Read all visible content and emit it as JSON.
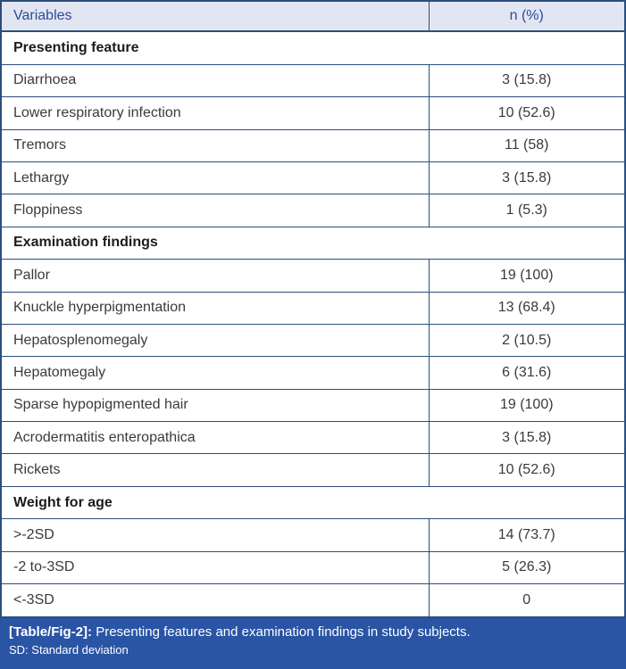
{
  "table": {
    "header": {
      "variables": "Variables",
      "n_pct": "n (%)"
    },
    "sections": [
      {
        "title": "Presenting feature",
        "rows": [
          {
            "label": "Diarrhoea",
            "value": "3 (15.8)"
          },
          {
            "label": "Lower respiratory infection",
            "value": "10 (52.6)"
          },
          {
            "label": "Tremors",
            "value": "11 (58)"
          },
          {
            "label": "Lethargy",
            "value": "3 (15.8)"
          },
          {
            "label": "Floppiness",
            "value": "1 (5.3)"
          }
        ]
      },
      {
        "title": "Examination findings",
        "rows": [
          {
            "label": "Pallor",
            "value": "19 (100)"
          },
          {
            "label": "Knuckle hyperpigmentation",
            "value": "13 (68.4)"
          },
          {
            "label": "Hepatosplenomegaly",
            "value": "2 (10.5)"
          },
          {
            "label": "Hepatomegaly",
            "value": "6 (31.6)"
          },
          {
            "label": "Sparse hypopigmented hair",
            "value": "19 (100)"
          },
          {
            "label": "Acrodermatitis enteropathica",
            "value": "3 (15.8)"
          },
          {
            "label": "Rickets",
            "value": "10 (52.6)"
          }
        ]
      },
      {
        "title": "Weight for age",
        "rows": [
          {
            "label": ">-2SD",
            "value": "14 (73.7)"
          },
          {
            "label": "-2 to-3SD",
            "value": "5 (26.3)"
          },
          {
            "label": "<-3SD",
            "value": "0"
          }
        ]
      }
    ],
    "caption": {
      "tag": "[Table/Fig-2]:",
      "text": "Presenting features and examination findings in study subjects.",
      "note": "SD: Standard deviation"
    }
  },
  "colors": {
    "header_bg": "#e2e6f2",
    "header_text": "#2b4b9c",
    "border": "#2c4e7c",
    "footer_bg": "#2a54a4",
    "footer_text": "#ffffff"
  }
}
